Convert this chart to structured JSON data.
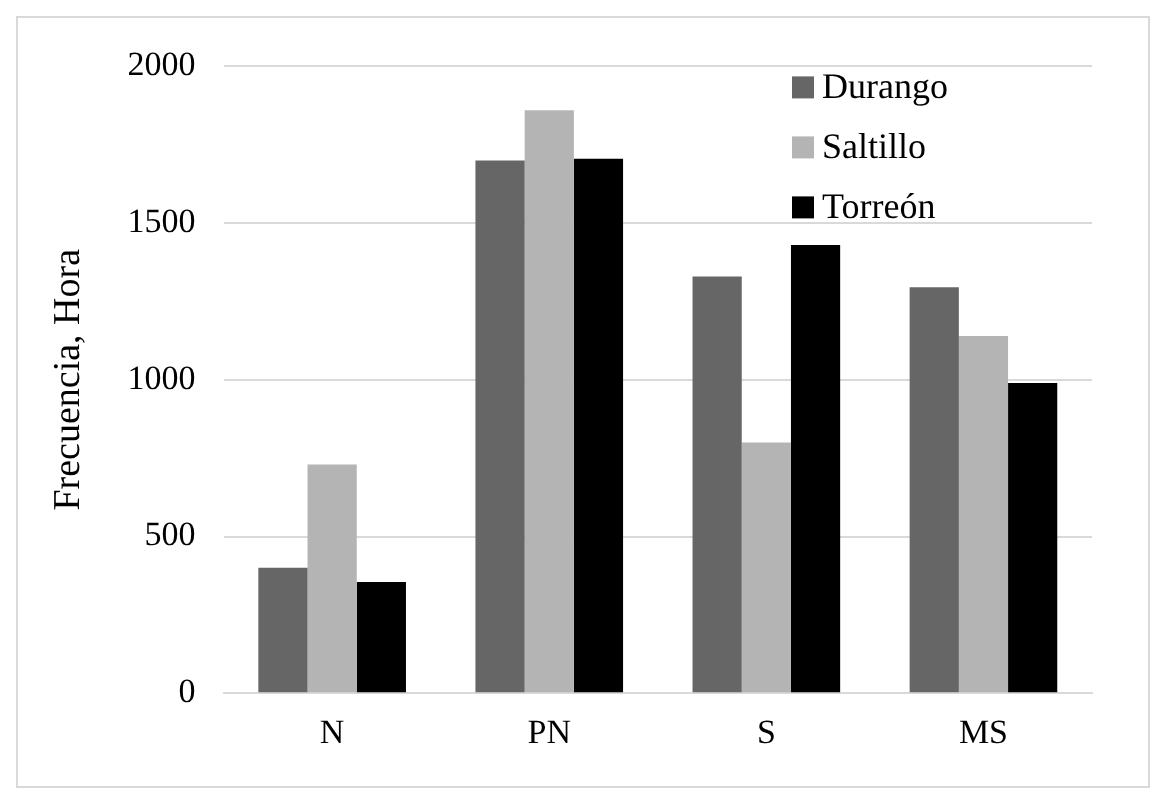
{
  "chart_data": {
    "type": "bar",
    "ylabel": "Frecuencia, Hora",
    "categories": [
      "N",
      "PN",
      "S",
      "MS"
    ],
    "series": [
      {
        "name": "Durango",
        "color": "#666666",
        "values": [
          400,
          1700,
          1330,
          1295
        ]
      },
      {
        "name": "Saltillo",
        "color": "#b4b4b4",
        "values": [
          730,
          1860,
          800,
          1140
        ]
      },
      {
        "name": "Torreón",
        "color": "#000000",
        "values": [
          355,
          1705,
          1430,
          990
        ]
      }
    ],
    "ylim": [
      0,
      2000
    ],
    "yticks": [
      0,
      500,
      1000,
      1500,
      2000
    ],
    "grid": "y",
    "legend": "top right"
  }
}
